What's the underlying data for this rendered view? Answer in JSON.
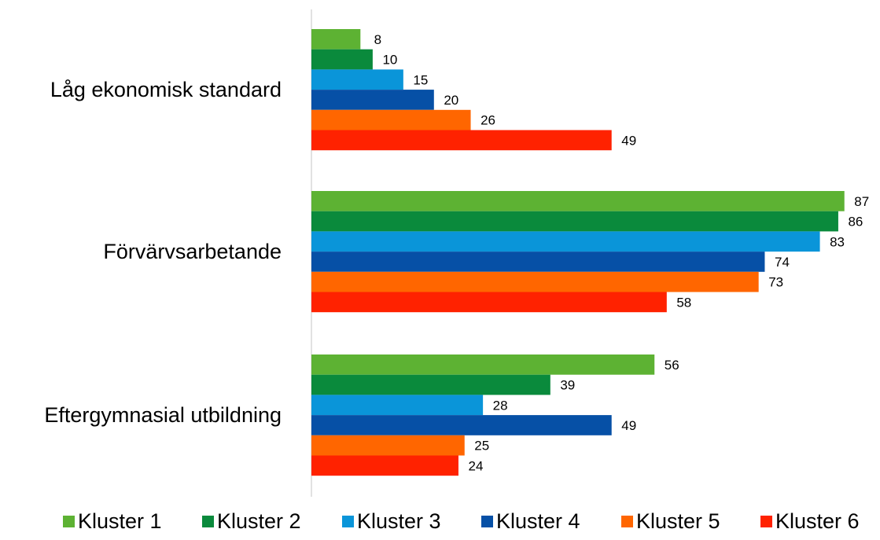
{
  "chart_data": {
    "type": "bar",
    "orientation": "horizontal",
    "categories": [
      "Låg ekonomisk standard",
      "Förvärvsarbetande",
      "Eftergymnasial utbildning"
    ],
    "series": [
      {
        "name": "Kluster 1",
        "color": "#5DB233",
        "values": [
          8,
          87,
          56
        ]
      },
      {
        "name": "Kluster 2",
        "color": "#0A8A3C",
        "values": [
          10,
          86,
          39
        ]
      },
      {
        "name": "Kluster 3",
        "color": "#0A95D9",
        "values": [
          15,
          83,
          28
        ]
      },
      {
        "name": "Kluster 4",
        "color": "#0650A6",
        "values": [
          20,
          74,
          49
        ]
      },
      {
        "name": "Kluster 5",
        "color": "#FF6600",
        "values": [
          26,
          73,
          25
        ]
      },
      {
        "name": "Kluster 6",
        "color": "#FF2200",
        "values": [
          49,
          58,
          24
        ]
      }
    ],
    "xlim": [
      0,
      100
    ],
    "grid": false,
    "data_labels": true,
    "legend_position": "bottom",
    "title": "",
    "xlabel": "",
    "ylabel": ""
  }
}
